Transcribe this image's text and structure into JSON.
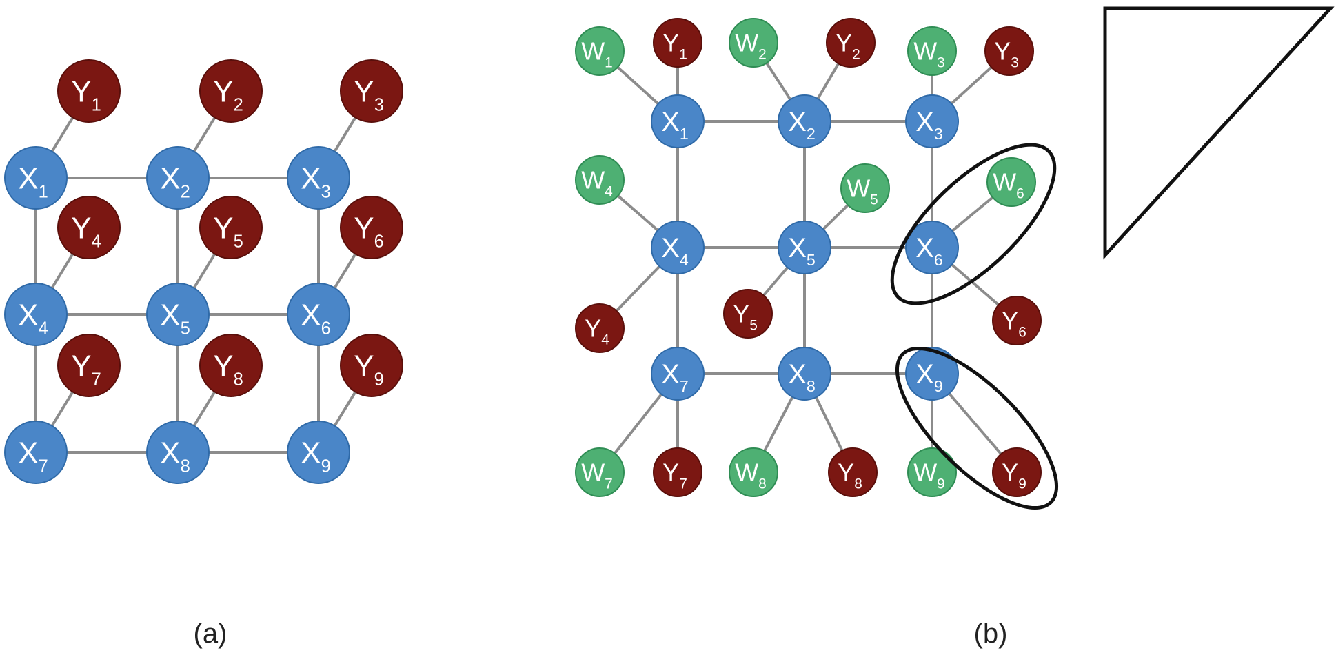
{
  "captions": {
    "a": "(a)",
    "b": "(b)"
  },
  "colors": {
    "x_node": "#4a86c8",
    "x_stroke": "#2f6aa8",
    "y_node": "#7b1712",
    "y_stroke": "#5a0f0b",
    "w_node": "#4eb073",
    "w_stroke": "#2f8d54",
    "edge": "#8c8c8c",
    "outline": "#111111"
  },
  "panel_a": {
    "x_nodes": [
      {
        "letter": "X",
        "sub": "1"
      },
      {
        "letter": "X",
        "sub": "2"
      },
      {
        "letter": "X",
        "sub": "3"
      },
      {
        "letter": "X",
        "sub": "4"
      },
      {
        "letter": "X",
        "sub": "5"
      },
      {
        "letter": "X",
        "sub": "6"
      },
      {
        "letter": "X",
        "sub": "7"
      },
      {
        "letter": "X",
        "sub": "8"
      },
      {
        "letter": "X",
        "sub": "9"
      }
    ],
    "y_nodes": [
      {
        "letter": "Y",
        "sub": "1"
      },
      {
        "letter": "Y",
        "sub": "2"
      },
      {
        "letter": "Y",
        "sub": "3"
      },
      {
        "letter": "Y",
        "sub": "4"
      },
      {
        "letter": "Y",
        "sub": "5"
      },
      {
        "letter": "Y",
        "sub": "6"
      },
      {
        "letter": "Y",
        "sub": "7"
      },
      {
        "letter": "Y",
        "sub": "8"
      },
      {
        "letter": "Y",
        "sub": "9"
      }
    ]
  },
  "panel_b": {
    "x_nodes": [
      {
        "letter": "X",
        "sub": "1"
      },
      {
        "letter": "X",
        "sub": "2"
      },
      {
        "letter": "X",
        "sub": "3"
      },
      {
        "letter": "X",
        "sub": "4"
      },
      {
        "letter": "X",
        "sub": "5"
      },
      {
        "letter": "X",
        "sub": "6"
      },
      {
        "letter": "X",
        "sub": "7"
      },
      {
        "letter": "X",
        "sub": "8"
      },
      {
        "letter": "X",
        "sub": "9"
      }
    ],
    "y_nodes": [
      {
        "letter": "Y",
        "sub": "1"
      },
      {
        "letter": "Y",
        "sub": "2"
      },
      {
        "letter": "Y",
        "sub": "3"
      },
      {
        "letter": "Y",
        "sub": "4"
      },
      {
        "letter": "Y",
        "sub": "5"
      },
      {
        "letter": "Y",
        "sub": "6"
      },
      {
        "letter": "Y",
        "sub": "7"
      },
      {
        "letter": "Y",
        "sub": "8"
      },
      {
        "letter": "Y",
        "sub": "9"
      }
    ],
    "w_nodes": [
      {
        "letter": "W",
        "sub": "1"
      },
      {
        "letter": "W",
        "sub": "2"
      },
      {
        "letter": "W",
        "sub": "3"
      },
      {
        "letter": "W",
        "sub": "4"
      },
      {
        "letter": "W",
        "sub": "5"
      },
      {
        "letter": "W",
        "sub": "6"
      },
      {
        "letter": "W",
        "sub": "7"
      },
      {
        "letter": "W",
        "sub": "8"
      },
      {
        "letter": "W",
        "sub": "9"
      }
    ]
  }
}
